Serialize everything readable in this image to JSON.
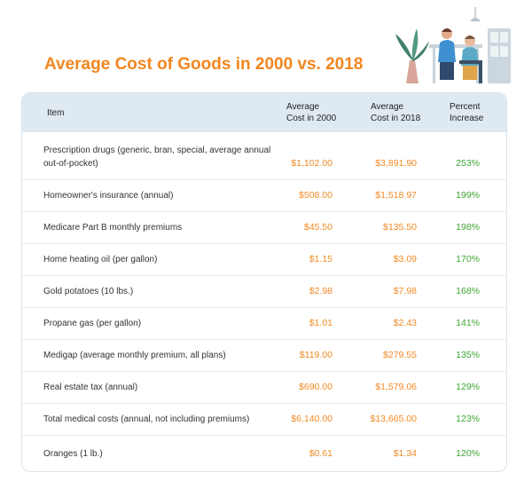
{
  "page": {
    "title": "Average Cost of Goods in 2000 vs. 2018"
  },
  "table": {
    "headers": {
      "item": "Item",
      "cost_2000_line1": "Average",
      "cost_2000_line2": "Cost in 2000",
      "cost_2018_line1": "Average",
      "cost_2018_line2": "Cost in 2018",
      "percent_line1": "Percent",
      "percent_line2": "Increase"
    },
    "rows": [
      {
        "item": "Prescription drugs (generic, bran, special, average annual out-of-pocket)",
        "cost_2000": "$1,102.00",
        "cost_2018": "$3,891.90",
        "percent": "253%"
      },
      {
        "item": "Homeowner's insurance (annual)",
        "cost_2000": "$508.00",
        "cost_2018": "$1,518.97",
        "percent": "199%"
      },
      {
        "item": "Medicare Part B monthly premiums",
        "cost_2000": "$45.50",
        "cost_2018": "$135.50",
        "percent": "198%"
      },
      {
        "item": "Home heating oil (per gallon)",
        "cost_2000": "$1.15",
        "cost_2018": "$3.09",
        "percent": "170%"
      },
      {
        "item": "Gold potatoes (10 lbs.)",
        "cost_2000": "$2.98",
        "cost_2018": "$7.98",
        "percent": "168%"
      },
      {
        "item": "Propane gas (per gallon)",
        "cost_2000": "$1.01",
        "cost_2018": "$2.43",
        "percent": "141%"
      },
      {
        "item": "Medigap (average monthly premium, all plans)",
        "cost_2000": "$119.00",
        "cost_2018": "$279.55",
        "percent": "135%"
      },
      {
        "item": "Real estate tax (annual)",
        "cost_2000": "$690.00",
        "cost_2018": "$1,579.06",
        "percent": "129%"
      },
      {
        "item": "Total medical costs (annual, not including premiums)",
        "cost_2000": "$6,140.00",
        "cost_2018": "$13,665.00",
        "percent": "123%"
      },
      {
        "item": "Oranges (1 lb.)",
        "cost_2000": "$0.61",
        "cost_2018": "$1.34",
        "percent": "120%"
      }
    ]
  },
  "colors": {
    "title": "#f2861f",
    "cost_values": "#f08a24",
    "percent_values": "#3fa535",
    "header_band": "#dfe9f1"
  },
  "icons": {
    "illustration": "doctor-patient-illustration"
  }
}
